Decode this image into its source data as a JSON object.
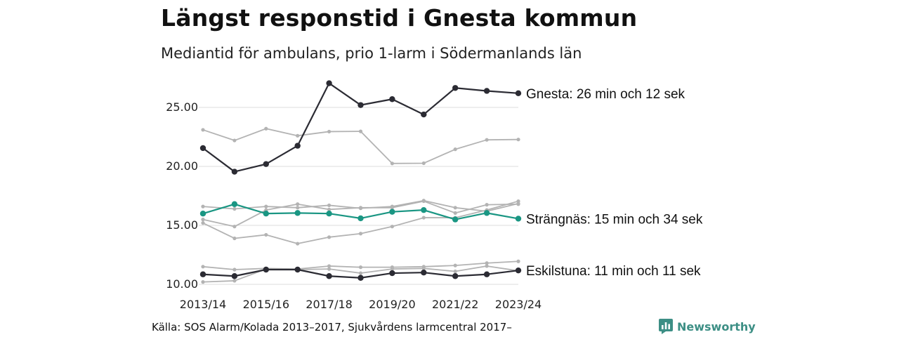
{
  "title": "Längst responstid i Gnesta kommun",
  "subtitle": "Mediantid för ambulans, prio 1-larm i Södermanlands län",
  "source": "Källa: SOS Alarm/Kolada 2013–2017, Sjukvårdens larmcentral 2017–",
  "brand": {
    "name": "Newsworthy",
    "icon": "newsworthy-logo-icon",
    "color": "#3d8f85"
  },
  "colors": {
    "gnesta": "#2b2b33",
    "eskilstuna": "#2b2b33",
    "strangnas": "#1a9683",
    "other": "#b3b3b3",
    "grid": "#dddddd"
  },
  "chart_data": {
    "type": "line",
    "x": [
      "2013/14",
      "2014/15",
      "2015/16",
      "2016/17",
      "2017/18",
      "2018/19",
      "2019/20",
      "2020/21",
      "2021/22",
      "2022/23",
      "2023/24"
    ],
    "x_tick_labels": [
      "2013/14",
      "2015/16",
      "2017/18",
      "2019/20",
      "2021/22",
      "2023/24"
    ],
    "ylim": [
      10,
      27.5
    ],
    "y_ticks": [
      10,
      15,
      20,
      25
    ],
    "y_tick_labels": [
      "10.00",
      "15.00",
      "20.00",
      "25.00"
    ],
    "grid": "horizontal",
    "series": [
      {
        "key": "other1",
        "values": [
          23.1,
          22.2,
          23.2,
          22.6,
          22.95,
          22.97,
          20.25,
          20.27,
          21.45,
          22.25,
          22.28
        ]
      },
      {
        "key": "other2",
        "values": [
          16.6,
          16.4,
          16.6,
          16.5,
          16.7,
          16.45,
          16.6,
          17.1,
          16.5,
          16.2,
          16.85
        ]
      },
      {
        "key": "other3",
        "values": [
          15.5,
          14.9,
          16.3,
          16.8,
          16.35,
          16.5,
          16.5,
          17.05,
          16.05,
          16.75,
          16.8
        ]
      },
      {
        "key": "other4",
        "values": [
          15.2,
          13.9,
          14.2,
          13.45,
          14.0,
          14.3,
          14.9,
          15.65,
          15.65,
          16.3,
          17.05
        ]
      },
      {
        "key": "other5",
        "values": [
          11.5,
          11.25,
          11.35,
          11.3,
          11.55,
          11.45,
          11.45,
          11.5,
          11.6,
          11.8,
          11.95
        ]
      },
      {
        "key": "other6",
        "values": [
          10.2,
          10.3,
          11.3,
          11.25,
          11.3,
          10.95,
          11.3,
          11.35,
          11.1,
          11.55,
          11.15
        ]
      },
      {
        "key": "strangnas",
        "name": "Strängnäs: 15 min och 34 sek",
        "values": [
          16.0,
          16.8,
          16.0,
          16.05,
          16.0,
          15.6,
          16.15,
          16.3,
          15.5,
          16.05,
          15.57
        ]
      },
      {
        "key": "eskilstuna",
        "name": "Eskilstuna: 11 min och 11 sek",
        "values": [
          10.85,
          10.7,
          11.25,
          11.25,
          10.7,
          10.55,
          10.95,
          11.0,
          10.7,
          10.85,
          11.18
        ]
      },
      {
        "key": "gnesta",
        "name": "Gnesta: 26 min och 12 sek",
        "values": [
          21.55,
          19.55,
          20.2,
          21.75,
          27.05,
          25.2,
          25.7,
          24.4,
          26.65,
          26.4,
          26.2
        ]
      }
    ]
  }
}
